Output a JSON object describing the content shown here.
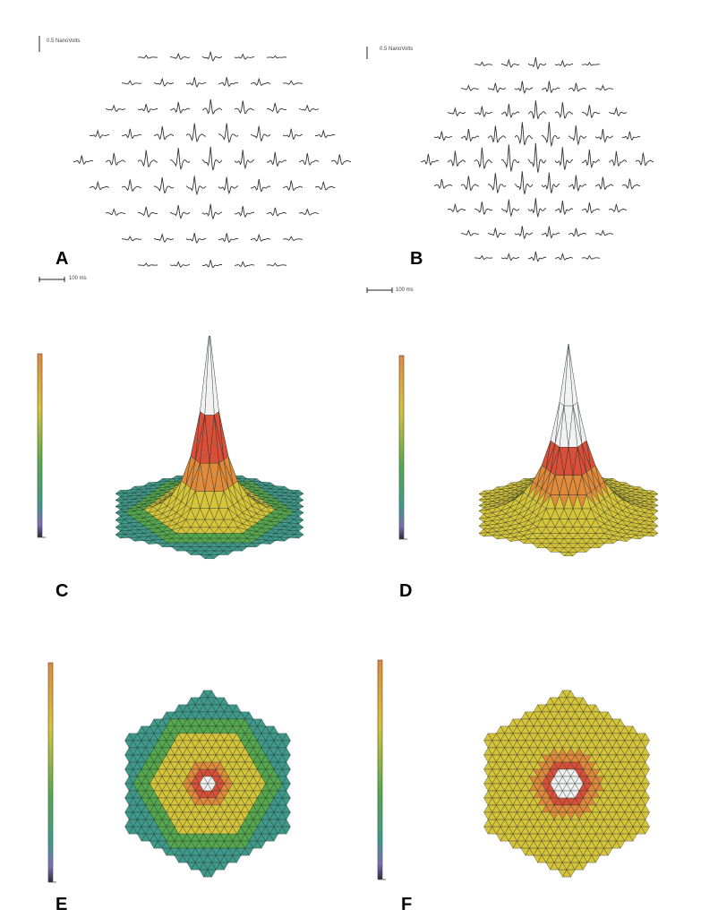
{
  "figure": {
    "panels": [
      {
        "letter": "A",
        "kind": "trace-array"
      },
      {
        "letter": "B",
        "kind": "trace-array"
      },
      {
        "letter": "C",
        "kind": "surface-3d"
      },
      {
        "letter": "D",
        "kind": "surface-3d"
      },
      {
        "letter": "E",
        "kind": "topographic-map"
      },
      {
        "letter": "F",
        "kind": "topographic-map"
      }
    ],
    "scales": {
      "a_amplitude": "0.5 NanoVolts",
      "b_amplitude": "0.5 NanoVolts",
      "a_time": "100 ms",
      "b_time": "100 ms"
    },
    "colors": {
      "white": "#f2f2f2",
      "red": "#d9503a",
      "orange": "#e08a3c",
      "yellow": "#d6c43b",
      "green": "#56a84e",
      "teal": "#3f9a8c",
      "blue": "#5a9ccf",
      "purple": "#7d6fb5",
      "trace": "#333333"
    }
  }
}
